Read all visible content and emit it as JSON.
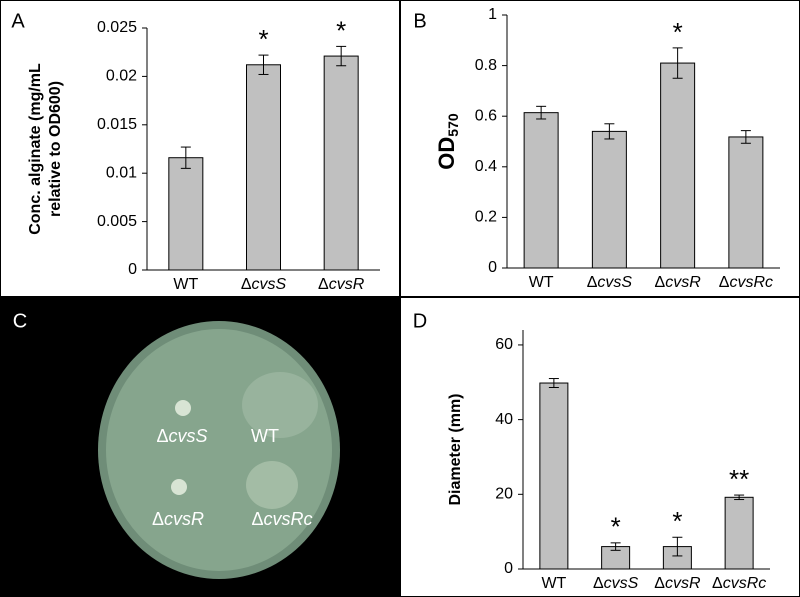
{
  "chart_data": [
    {
      "type": "bar",
      "panel": "A",
      "ylabel": [
        "Conc. alginate (mg/mL",
        "relative to OD600)"
      ],
      "categories": [
        "WT",
        "ΔcvsS",
        "ΔcvsR"
      ],
      "values": [
        0.0116,
        0.0212,
        0.0221
      ],
      "errors": [
        0.0011,
        0.001,
        0.001
      ],
      "annotations": [
        null,
        "*",
        "*"
      ],
      "color": "#c0c0c0",
      "ylim": [
        0,
        0.025
      ],
      "yticks": [
        0,
        0.005,
        0.01,
        0.015,
        0.02,
        0.025
      ]
    },
    {
      "type": "bar",
      "panel": "B",
      "ylabel": "OD",
      "ylabel_subscript": "570",
      "categories": [
        "WT",
        "ΔcvsS",
        "ΔcvsR",
        "ΔcvsRc"
      ],
      "values": [
        0.614,
        0.54,
        0.81,
        0.518
      ],
      "errors": [
        0.025,
        0.03,
        0.06,
        0.025
      ],
      "annotations": [
        null,
        null,
        "*",
        null
      ],
      "color": "#c0c0c0",
      "ylim": [
        0,
        1
      ],
      "yticks": [
        0,
        0.2,
        0.4,
        0.6,
        0.8,
        1
      ]
    },
    {
      "type": "image",
      "panel": "C",
      "labels": [
        "ΔcvsS",
        "WT",
        "ΔcvsR",
        "ΔcvsRc"
      ]
    },
    {
      "type": "bar",
      "panel": "D",
      "ylabel": "Diameter (mm)",
      "categories": [
        "WT",
        "ΔcvsS",
        "ΔcvsR",
        "ΔcvsRc"
      ],
      "values": [
        49.8,
        6,
        6,
        19.2
      ],
      "errors": [
        1.2,
        1,
        2.5,
        0.6
      ],
      "annotations": [
        null,
        "*",
        "*",
        "**"
      ],
      "color": "#c0c0c0",
      "ylim": [
        0,
        64
      ],
      "yticks": [
        0,
        20,
        40,
        60
      ]
    }
  ]
}
